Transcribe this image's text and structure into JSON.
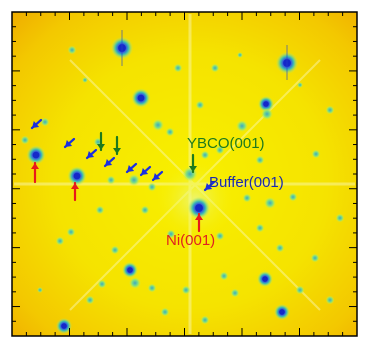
{
  "labels": {
    "ycbo": "YBCO(001)",
    "buffer": "Buffer(001)",
    "ni": "Ni(001)"
  },
  "colors": {
    "background": "#f7e600",
    "halo": "#f2b800",
    "spot_core": "#1a2fd0",
    "spot_halo": "#34c4b0",
    "ycbo_text": "#1d7a1d",
    "buffer_text": "#1a2ab0",
    "ni_text": "#e02020",
    "arrow_blue": "#1a2fe0",
    "arrow_red": "#e81a1a",
    "arrow_green": "#1d7a1d",
    "frame": "#000000"
  }
}
